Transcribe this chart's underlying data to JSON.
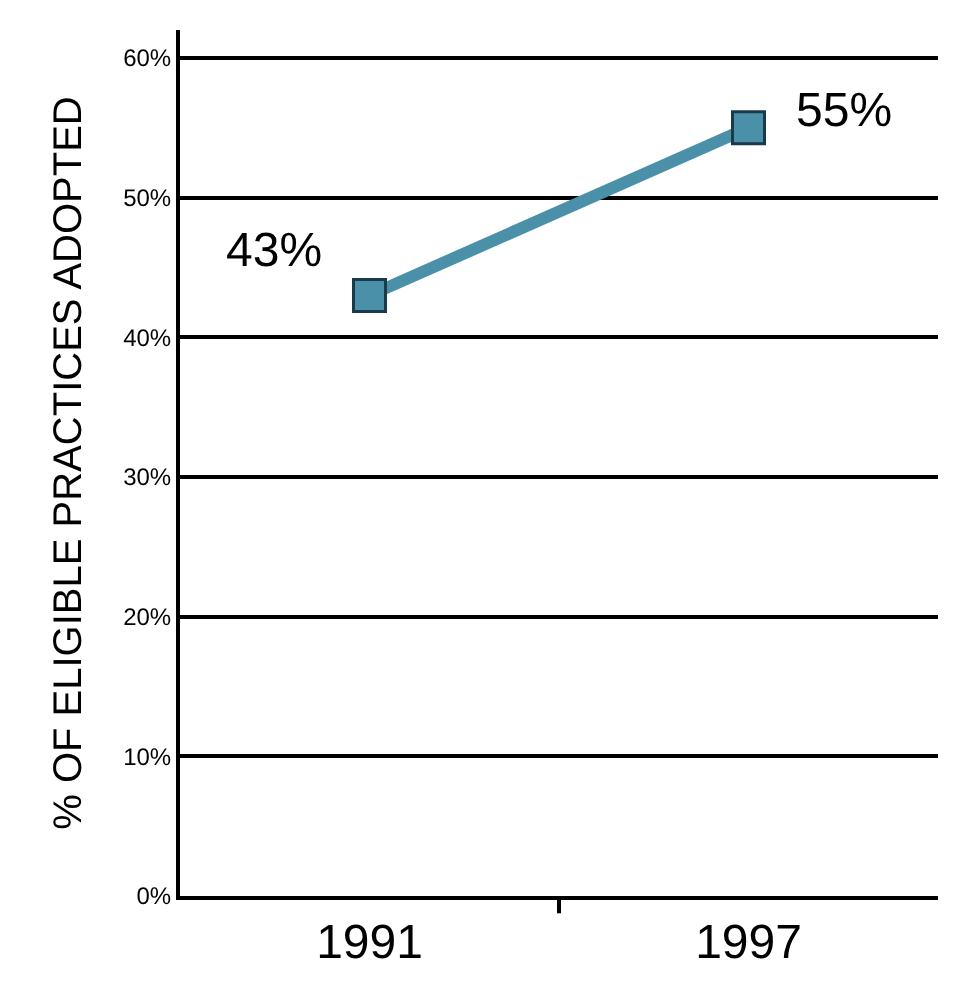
{
  "chart_data": {
    "type": "line",
    "ylabel": "% OF ELIGIBLE PRACTICES ADOPTED",
    "categories": [
      "1991",
      "1997"
    ],
    "series": [
      {
        "color": "#4a90a8",
        "values": [
          43,
          55
        ],
        "value_labels": [
          "43%",
          "55%"
        ]
      }
    ],
    "ylim": [
      0,
      62
    ],
    "yticks": [
      {
        "value": 0,
        "label": "0%"
      },
      {
        "value": 10,
        "label": "10%"
      },
      {
        "value": 20,
        "label": "20%"
      },
      {
        "value": 30,
        "label": "30%"
      },
      {
        "value": 40,
        "label": "40%"
      },
      {
        "value": 50,
        "label": "50%"
      },
      {
        "value": 60,
        "label": "60%"
      }
    ],
    "grid": "y",
    "marker": "square",
    "line_style": "solid",
    "legend": false
  }
}
